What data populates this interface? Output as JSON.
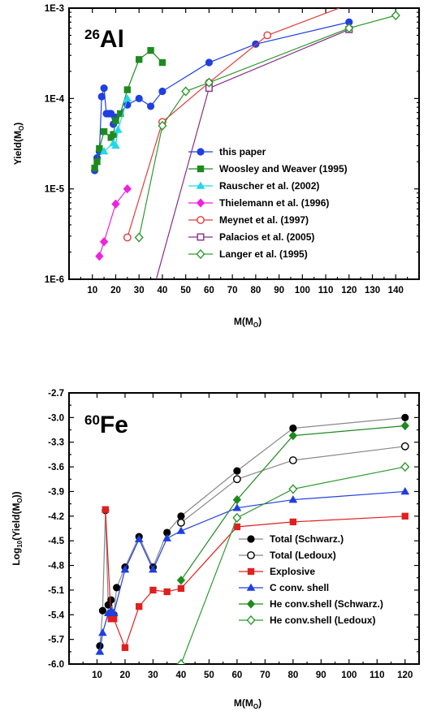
{
  "chart_data": [
    {
      "type": "line",
      "panel_label": {
        "mass": "26",
        "element": "Al"
      },
      "xlabel": "M(M",
      "xlabel_sub": "O",
      "xlabel_close": ")",
      "ylabel": "Yield(M",
      "ylabel_sub": "O",
      "ylabel_close": ")",
      "xlim": [
        0,
        150
      ],
      "ylim": [
        1e-06,
        0.001
      ],
      "yscale": "log",
      "xticks": [
        10,
        20,
        30,
        40,
        50,
        60,
        70,
        80,
        90,
        100,
        110,
        120,
        130,
        140
      ],
      "yticks": [
        1e-06,
        1e-05,
        0.0001,
        0.001
      ],
      "ytick_labels": [
        "1E-6",
        "1E-5",
        "1E-4",
        "1E-3"
      ],
      "legend_position": "center-right",
      "series": [
        {
          "name": "this paper",
          "color": "#1f3fe0",
          "marker": "circle",
          "filled": true,
          "x": [
            11,
            12,
            13,
            14,
            15,
            16,
            17,
            18,
            19,
            20,
            25,
            30,
            35,
            40,
            60,
            80,
            120
          ],
          "y": [
            1.6e-05,
            2.2e-05,
            2.6e-05,
            0.000105,
            0.00013,
            6.8e-05,
            6.8e-05,
            6.8e-05,
            5.2e-05,
            6.2e-05,
            8.5e-05,
            0.0001,
            8.2e-05,
            0.00012,
            0.00025,
            0.0004,
            0.0007
          ]
        },
        {
          "name": "Woosley and Weaver (1995)",
          "color": "#1e8a1e",
          "marker": "square",
          "filled": true,
          "x": [
            11,
            12,
            13,
            15,
            18,
            19,
            20,
            22,
            25,
            30,
            35,
            40
          ],
          "y": [
            1.7e-05,
            2e-05,
            2.8e-05,
            4.3e-05,
            3.7e-05,
            4e-05,
            5.7e-05,
            6.8e-05,
            0.000125,
            0.00027,
            0.00034,
            0.00025
          ]
        },
        {
          "name": "Rauscher et al. (2002)",
          "color": "#22d8e8",
          "marker": "triangle",
          "filled": true,
          "x": [
            15,
            19,
            20,
            21,
            25
          ],
          "y": [
            2.6e-05,
            3.2e-05,
            3e-05,
            4.5e-05,
            0.0001
          ]
        },
        {
          "name": "Thielemann et al. (1996)",
          "color": "#ee22dd",
          "marker": "diamond",
          "filled": true,
          "x": [
            13,
            15,
            20,
            25
          ],
          "y": [
            1.8e-06,
            2.6e-06,
            6.8e-06,
            1e-05
          ]
        },
        {
          "name": "Meynet et al. (1997)",
          "color": "#e43a3a",
          "marker": "circle",
          "filled": false,
          "x": [
            25,
            40,
            60,
            85,
            120
          ],
          "y": [
            2.9e-06,
            5.5e-05,
            0.00015,
            0.0005,
            0.0011
          ]
        },
        {
          "name": "Palacios et al. (2005)",
          "color": "#8a2c8a",
          "marker": "square",
          "filled": false,
          "x": [
            60,
            120
          ],
          "y": [
            0.00013,
            0.00058
          ],
          "extra_line": {
            "x": [
              35,
              60
            ],
            "y": [
              6e-07,
              0.00013
            ]
          }
        },
        {
          "name": "Langer et al. (1995)",
          "color": "#2e9a2e",
          "marker": "diamond",
          "filled": false,
          "x": [
            30,
            40,
            50,
            60,
            120,
            140
          ],
          "y": [
            2.9e-06,
            5e-05,
            0.00012,
            0.00015,
            0.0006,
            0.00083
          ]
        }
      ]
    },
    {
      "type": "line",
      "panel_label": {
        "mass": "60",
        "element": "Fe"
      },
      "xlabel": "M(M",
      "xlabel_sub": "O",
      "xlabel_close": ")",
      "ylabel": "Log",
      "ylabel_sub": "10",
      "ylabel_rest": "(Yield(M",
      "ylabel_sub2": "O",
      "ylabel_close": "))",
      "xlim": [
        0,
        125
      ],
      "ylim": [
        -6.0,
        -2.7
      ],
      "yscale": "linear",
      "xticks": [
        10,
        20,
        30,
        40,
        50,
        60,
        70,
        80,
        90,
        100,
        110,
        120
      ],
      "yticks": [
        -6.0,
        -5.7,
        -5.4,
        -5.1,
        -4.8,
        -4.5,
        -4.2,
        -3.9,
        -3.6,
        -3.3,
        -3.0,
        -2.7
      ],
      "ytick_labels": [
        "-6.0",
        "-5.7",
        "-5.4",
        "-5.1",
        "-4.8",
        "-4.5",
        "-4.2",
        "-3.9",
        "-3.6",
        "-3.3",
        "-3.0",
        "-2.7"
      ],
      "legend_position": "lower-right",
      "series": [
        {
          "name": "Total (Schwarz.)",
          "color": "#000000",
          "line": "#888888",
          "marker": "circle",
          "filled": true,
          "x": [
            11,
            12,
            13,
            14,
            15,
            16,
            17,
            20,
            25,
            30,
            35,
            40,
            60,
            80,
            120
          ],
          "y": [
            -5.78,
            -5.35,
            -4.13,
            -5.28,
            -5.22,
            -5.4,
            -5.07,
            -4.82,
            -4.45,
            -4.82,
            -4.4,
            -4.2,
            -3.65,
            -3.13,
            -3.0
          ]
        },
        {
          "name": "Total (Ledoux)",
          "color": "#000000",
          "line": "#888888",
          "marker": "circle",
          "filled": false,
          "x": [
            40,
            60,
            80,
            120
          ],
          "y": [
            -4.28,
            -3.75,
            -3.52,
            -3.35
          ]
        },
        {
          "name": "Explosive",
          "color": "#e02020",
          "marker": "square",
          "filled": true,
          "x": [
            13,
            15,
            16,
            20,
            25,
            30,
            35,
            40,
            60,
            80,
            120
          ],
          "y": [
            -4.12,
            -5.45,
            -5.45,
            -5.8,
            -5.3,
            -5.1,
            -5.12,
            -5.08,
            -4.33,
            -4.27,
            -4.2
          ]
        },
        {
          "name": "C conv. shell",
          "color": "#1f3fe0",
          "marker": "triangle",
          "filled": true,
          "x": [
            11,
            12,
            14,
            15,
            16,
            20,
            25,
            30,
            35,
            40,
            60,
            80,
            120
          ],
          "y": [
            -5.85,
            -5.62,
            -5.38,
            -5.35,
            -5.38,
            -4.85,
            -4.48,
            -4.85,
            -4.47,
            -4.38,
            -4.1,
            -4.0,
            -3.9
          ]
        },
        {
          "name": "He conv.shell (Schwarz.)",
          "color": "#1e8a1e",
          "marker": "diamond",
          "filled": true,
          "x": [
            40,
            60,
            80,
            120
          ],
          "y": [
            -4.98,
            -4.0,
            -3.22,
            -3.1
          ]
        },
        {
          "name": "He conv.shell (Ledoux)",
          "color": "#2e9a2e",
          "marker": "diamond",
          "filled": false,
          "x": [
            40,
            60,
            80,
            120
          ],
          "y": [
            -6.0,
            -4.22,
            -3.87,
            -3.6
          ]
        }
      ]
    }
  ]
}
